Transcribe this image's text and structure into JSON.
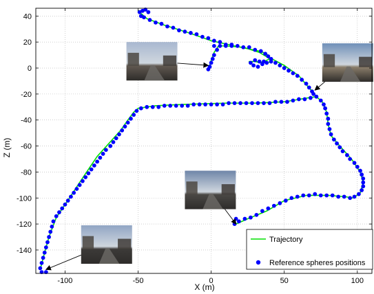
{
  "chart_data": {
    "type": "scatter",
    "xlabel": "X (m)",
    "ylabel": "Z (m)",
    "xlim": [
      -120,
      110
    ],
    "ylim": [
      -158,
      46
    ],
    "xticks": [
      -100,
      -50,
      0,
      50,
      100
    ],
    "yticks": [
      40,
      20,
      0,
      -20,
      -40,
      -60,
      -80,
      -100,
      -120,
      -140
    ],
    "grid": true,
    "legend_position": "bottom-right",
    "colors": {
      "trajectory": "#00e000",
      "spheres": "#0000ff",
      "arrow": "#000000",
      "grid": "#b0b0b0"
    },
    "series": [
      {
        "name": "Trajectory",
        "kind": "line",
        "points": [
          [
            -48,
            42
          ],
          [
            -44,
            38
          ],
          [
            -32,
            33
          ],
          [
            -15,
            27
          ],
          [
            0,
            21
          ],
          [
            20,
            16
          ],
          [
            33,
            13
          ],
          [
            38,
            11
          ],
          [
            40,
            7
          ],
          [
            34,
            4
          ],
          [
            30,
            5
          ],
          [
            26,
            5
          ],
          [
            30,
            5
          ],
          [
            38,
            4
          ],
          [
            41,
            5
          ],
          [
            39,
            8
          ],
          [
            33,
            12
          ],
          [
            22,
            16
          ],
          [
            10,
            17
          ],
          [
            5,
            17
          ],
          [
            2,
            12
          ],
          [
            0,
            6
          ],
          [
            -1,
            2
          ],
          [
            -48,
            42
          ],
          [
            -50,
            44
          ],
          [
            -44,
            44
          ],
          [
            40,
            8
          ],
          [
            50,
            2
          ],
          [
            60,
            -6
          ],
          [
            66,
            -14
          ],
          [
            70,
            -19
          ],
          [
            72,
            -22
          ],
          [
            66,
            -23
          ],
          [
            50,
            -26
          ],
          [
            30,
            -27
          ],
          [
            10,
            -27
          ],
          [
            -20,
            -28
          ],
          [
            -38,
            -29
          ],
          [
            -50,
            -31
          ],
          [
            -53,
            -34
          ],
          [
            -57,
            -40
          ],
          [
            -62,
            -48
          ],
          [
            -70,
            -58
          ],
          [
            -78,
            -68
          ],
          [
            -84,
            -78
          ],
          [
            -90,
            -88
          ],
          [
            -97,
            -100
          ],
          [
            -106,
            -115
          ],
          [
            -111,
            -130
          ],
          [
            -114,
            -142
          ],
          [
            -117,
            -155
          ],
          [
            72,
            -22
          ],
          [
            76,
            -26
          ],
          [
            79,
            -34
          ],
          [
            80,
            -43
          ],
          [
            82,
            -52
          ],
          [
            88,
            -60
          ],
          [
            96,
            -70
          ],
          [
            102,
            -80
          ],
          [
            104,
            -88
          ],
          [
            102,
            -96
          ],
          [
            97,
            -100
          ],
          [
            92,
            -99
          ],
          [
            80,
            -98
          ],
          [
            65,
            -98
          ],
          [
            50,
            -102
          ],
          [
            38,
            -110
          ],
          [
            25,
            -116
          ],
          [
            17,
            -120
          ]
        ]
      },
      {
        "name": "Reference spheres positions",
        "kind": "points",
        "points": [
          [
            -49,
            43
          ],
          [
            -47,
            44
          ],
          [
            -45,
            45
          ],
          [
            -43,
            43
          ],
          [
            -48,
            40
          ],
          [
            -46,
            39
          ],
          [
            -42,
            37
          ],
          [
            -38,
            35
          ],
          [
            -34,
            34
          ],
          [
            -30,
            32
          ],
          [
            -26,
            31
          ],
          [
            -22,
            29
          ],
          [
            -18,
            28
          ],
          [
            -14,
            27
          ],
          [
            -10,
            26
          ],
          [
            -6,
            24
          ],
          [
            -2,
            23
          ],
          [
            2,
            21
          ],
          [
            6,
            20
          ],
          [
            10,
            18
          ],
          [
            14,
            17
          ],
          [
            18,
            17
          ],
          [
            22,
            16
          ],
          [
            26,
            16
          ],
          [
            30,
            14
          ],
          [
            34,
            13
          ],
          [
            37,
            11
          ],
          [
            39,
            9
          ],
          [
            41,
            7
          ],
          [
            36,
            5
          ],
          [
            33,
            5
          ],
          [
            30,
            6
          ],
          [
            27,
            4
          ],
          [
            29,
            2
          ],
          [
            32,
            1
          ],
          [
            35,
            3
          ],
          [
            38,
            4
          ],
          [
            41,
            5
          ],
          [
            2,
            17
          ],
          [
            6,
            17
          ],
          [
            10,
            17
          ],
          [
            14,
            18
          ],
          [
            4,
            14
          ],
          [
            2,
            10
          ],
          [
            1,
            7
          ],
          [
            0,
            4
          ],
          [
            -1,
            1
          ],
          [
            -2,
            -1
          ],
          [
            44,
            4
          ],
          [
            47,
            2
          ],
          [
            50,
            0
          ],
          [
            53,
            -2
          ],
          [
            56,
            -4
          ],
          [
            59,
            -6
          ],
          [
            62,
            -9
          ],
          [
            65,
            -12
          ],
          [
            67,
            -15
          ],
          [
            69,
            -18
          ],
          [
            70,
            -20
          ],
          [
            72,
            -22
          ],
          [
            68,
            -23
          ],
          [
            64,
            -24
          ],
          [
            60,
            -24
          ],
          [
            56,
            -25
          ],
          [
            52,
            -26
          ],
          [
            48,
            -26
          ],
          [
            44,
            -26
          ],
          [
            40,
            -27
          ],
          [
            36,
            -27
          ],
          [
            32,
            -27
          ],
          [
            28,
            -27
          ],
          [
            24,
            -27
          ],
          [
            20,
            -27
          ],
          [
            16,
            -27
          ],
          [
            12,
            -27
          ],
          [
            8,
            -28
          ],
          [
            4,
            -28
          ],
          [
            0,
            -28
          ],
          [
            -4,
            -28
          ],
          [
            -8,
            -28
          ],
          [
            -12,
            -28
          ],
          [
            -16,
            -29
          ],
          [
            -20,
            -29
          ],
          [
            -24,
            -29
          ],
          [
            -28,
            -29
          ],
          [
            -32,
            -29
          ],
          [
            -36,
            -30
          ],
          [
            -40,
            -30
          ],
          [
            -44,
            -30
          ],
          [
            -48,
            -31
          ],
          [
            -51,
            -33
          ],
          [
            -53,
            -36
          ],
          [
            -55,
            -39
          ],
          [
            -57,
            -42
          ],
          [
            -59,
            -45
          ],
          [
            -61,
            -48
          ],
          [
            -63,
            -51
          ],
          [
            -65,
            -54
          ],
          [
            -67,
            -57
          ],
          [
            -69,
            -60
          ],
          [
            -72,
            -63
          ],
          [
            -74,
            -66
          ],
          [
            -76,
            -69
          ],
          [
            -78,
            -72
          ],
          [
            -80,
            -75
          ],
          [
            -82,
            -78
          ],
          [
            -84,
            -81
          ],
          [
            -86,
            -84
          ],
          [
            -88,
            -87
          ],
          [
            -90,
            -90
          ],
          [
            -92,
            -93
          ],
          [
            -94,
            -96
          ],
          [
            -96,
            -99
          ],
          [
            -98,
            -102
          ],
          [
            -100,
            -105
          ],
          [
            -102,
            -108
          ],
          [
            -104,
            -111
          ],
          [
            -106,
            -114
          ],
          [
            -108,
            -118
          ],
          [
            -109,
            -122
          ],
          [
            -110,
            -126
          ],
          [
            -111,
            -130
          ],
          [
            -112,
            -134
          ],
          [
            -113,
            -138
          ],
          [
            -114,
            -142
          ],
          [
            -115,
            -146
          ],
          [
            -116,
            -150
          ],
          [
            -117,
            -154
          ],
          [
            -116,
            -157
          ],
          [
            -113,
            -157
          ],
          [
            75,
            -25
          ],
          [
            77,
            -28
          ],
          [
            78,
            -31
          ],
          [
            79,
            -35
          ],
          [
            80,
            -39
          ],
          [
            80,
            -43
          ],
          [
            81,
            -47
          ],
          [
            82,
            -51
          ],
          [
            84,
            -55
          ],
          [
            86,
            -58
          ],
          [
            88,
            -61
          ],
          [
            90,
            -64
          ],
          [
            93,
            -67
          ],
          [
            95,
            -70
          ],
          [
            98,
            -73
          ],
          [
            100,
            -76
          ],
          [
            102,
            -79
          ],
          [
            103,
            -82
          ],
          [
            104,
            -85
          ],
          [
            104,
            -88
          ],
          [
            104,
            -91
          ],
          [
            103,
            -94
          ],
          [
            101,
            -97
          ],
          [
            98,
            -99
          ],
          [
            95,
            -100
          ],
          [
            91,
            -99
          ],
          [
            87,
            -99
          ],
          [
            83,
            -98
          ],
          [
            79,
            -98
          ],
          [
            75,
            -98
          ],
          [
            71,
            -97
          ],
          [
            67,
            -98
          ],
          [
            63,
            -98
          ],
          [
            59,
            -99
          ],
          [
            55,
            -100
          ],
          [
            51,
            -102
          ],
          [
            47,
            -104
          ],
          [
            43,
            -106
          ],
          [
            39,
            -108
          ],
          [
            35,
            -110
          ],
          [
            31,
            -113
          ],
          [
            27,
            -115
          ],
          [
            23,
            -116
          ],
          [
            19,
            -118
          ],
          [
            17,
            -116
          ],
          [
            16,
            -120
          ]
        ]
      }
    ],
    "photos": [
      {
        "name": "photo-street-1",
        "corner": [
          -58,
          20
        ],
        "target": [
          -2,
          2
        ],
        "sky": "#a8b8d0",
        "ground": "#605850"
      },
      {
        "name": "photo-buildings",
        "corner": [
          76,
          19
        ],
        "target": [
          71,
          -17
        ],
        "sky": "#7090b8",
        "ground": "#8a7d6a"
      },
      {
        "name": "photo-road",
        "corner": [
          -18,
          -79
        ],
        "target": [
          17,
          -120
        ],
        "sky": "#6f86a8",
        "ground": "#4a4845"
      },
      {
        "name": "photo-parking",
        "corner": [
          -89,
          -121
        ],
        "target": [
          -113,
          -155
        ],
        "sky": "#91a5c4",
        "ground": "#3c3a38"
      }
    ]
  }
}
